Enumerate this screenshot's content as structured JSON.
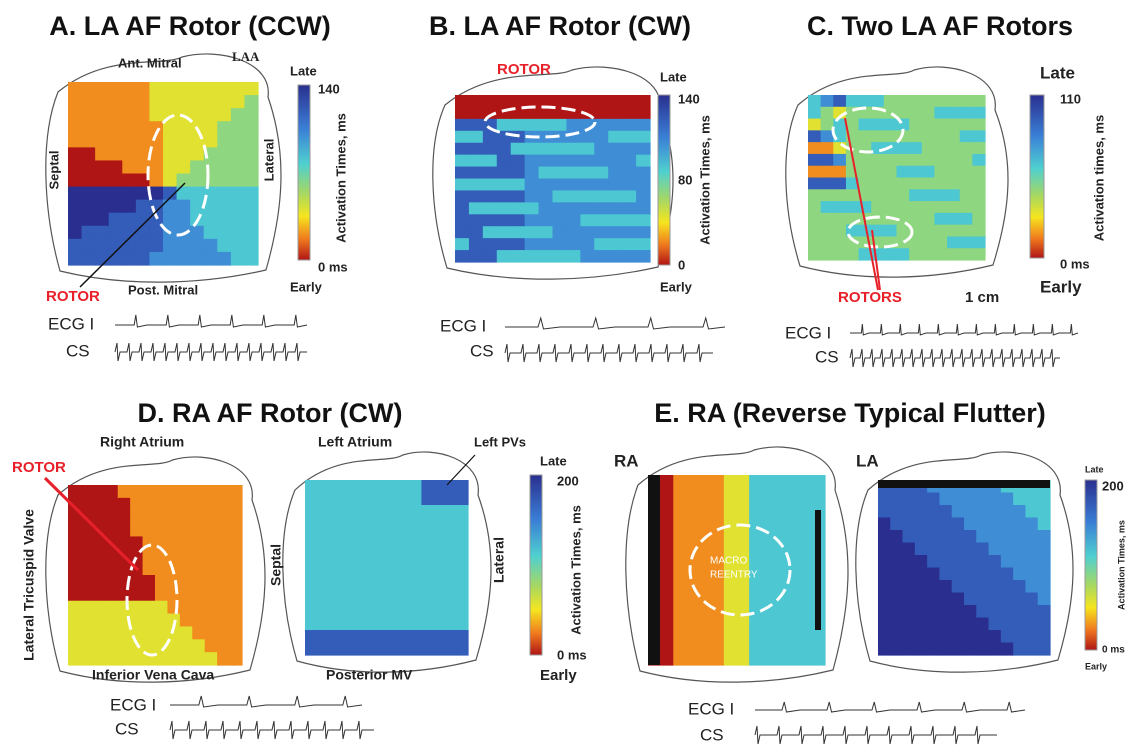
{
  "panels": [
    {
      "title": "A. LA AF Rotor (CCW)",
      "labels": [
        "Ant. Mitral",
        "LAA",
        "Septal",
        "Lateral",
        "Post. Mitral"
      ],
      "annotation": "ROTOR",
      "colorbar": {
        "top": "Late",
        "max": "140",
        "min": "0 ms",
        "bottom": "Early",
        "axis_label": "Activation Times, ms"
      },
      "traces": [
        "ECG I",
        "CS"
      ]
    },
    {
      "title": "B. LA AF Rotor (CW)",
      "annotation": "ROTOR",
      "colorbar": {
        "top": "Late",
        "max": "140",
        "mid": "80",
        "min": "0",
        "bottom": "Early",
        "axis_label": "Activation Times, ms"
      },
      "traces": [
        "ECG I",
        "CS"
      ]
    },
    {
      "title": "C. Two LA AF Rotors",
      "annotation": "ROTORS",
      "scale": "1 cm",
      "colorbar": {
        "top": "Late",
        "max": "110",
        "min": "0 ms",
        "bottom": "Early",
        "axis_label": "Activation times, ms"
      },
      "traces": [
        "ECG I",
        "CS"
      ]
    },
    {
      "title": "D. RA AF Rotor (CW)",
      "labels": [
        "Right Atrium",
        "Left Atrium",
        "Left PVs",
        "Lateral Tricuspid Valve",
        "Inferior Vena Cava",
        "Septal",
        "Lateral",
        "Posterior MV"
      ],
      "annotation": "ROTOR",
      "colorbar": {
        "top": "Late",
        "max": "200",
        "min": "0 ms",
        "bottom": "Early",
        "axis_label": "Activation Times, ms"
      },
      "traces": [
        "ECG I",
        "CS"
      ]
    },
    {
      "title": "E. RA (Reverse Typical Flutter)",
      "labels": [
        "RA",
        "LA",
        "MACRO",
        "REENTRY"
      ],
      "colorbar": {
        "top": "Late",
        "max": "200",
        "min": "0 ms",
        "bottom": "Early",
        "axis_label": "Activation Times, ms"
      },
      "traces": [
        "ECG I",
        "CS"
      ]
    }
  ]
}
